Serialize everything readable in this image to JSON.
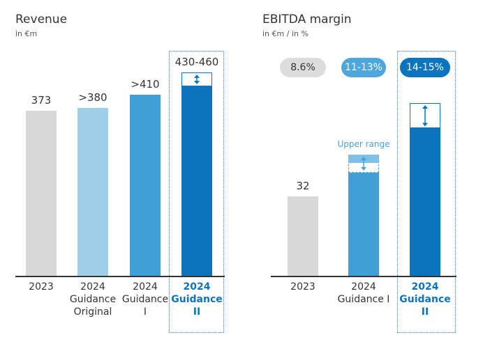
{
  "colors": {
    "grey": "#d8d8d8",
    "light_blue": "#9ecfe6",
    "mid_blue": "#3f9fd6",
    "dark_blue": "#0a74be",
    "pill_grey": "#dcdcdc"
  },
  "chart_data": [
    {
      "type": "bar",
      "title": "Revenue",
      "subtitle": "in €m",
      "categories": [
        "2023",
        "2024 Guidance Original",
        "2024 Guidance I",
        "2024 Guidance II"
      ],
      "category_lines": [
        [
          "2023"
        ],
        [
          "2024",
          "Guidance",
          "Original"
        ],
        [
          "2024",
          "Guidance",
          "I"
        ],
        [
          "2024",
          "Guidance",
          "II"
        ]
      ],
      "values": [
        373,
        380,
        410,
        430
      ],
      "range_upper": [
        null,
        null,
        null,
        460
      ],
      "data_labels": [
        "373",
        ">380",
        ">410",
        "430-460"
      ],
      "highlight_index": 3,
      "ylim": [
        0,
        520
      ]
    },
    {
      "type": "bar",
      "title": "EBITDA margin",
      "subtitle": "in €m / in %",
      "categories": [
        "2023",
        "2024 Guidance I",
        "2024 Guidance II"
      ],
      "category_lines": [
        [
          "2023"
        ],
        [
          "2024",
          "Guidance  I"
        ],
        [
          "2024",
          "Guidance",
          "II"
        ]
      ],
      "values": [
        32,
        42,
        60
      ],
      "range_upper": [
        null,
        49,
        70
      ],
      "data_labels": [
        "32",
        "",
        ""
      ],
      "margin_labels": [
        "8.6%",
        "11-13%",
        "14-15%"
      ],
      "upper_range_label": "Upper range",
      "highlight_index": 2,
      "ylim": [
        0,
        93
      ]
    }
  ]
}
